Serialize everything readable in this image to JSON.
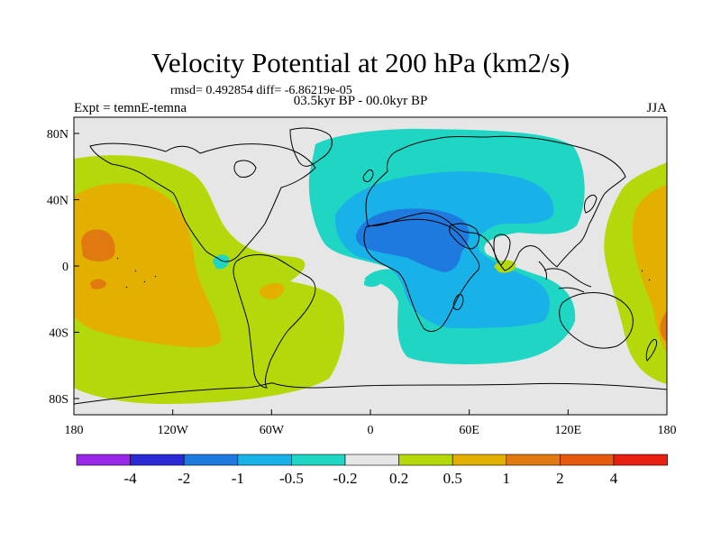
{
  "title": "Velocity Potential at 200 hPa (km2/s)",
  "stats": "rmsd= 0.492854 diff= -6.86219e-05",
  "left_label": "Expt = temnE-temna",
  "center_label": "03.5kyr BP - 00.0kyr BP",
  "right_label": "JJA",
  "colors": {
    "land_bg": "#e6e6e6",
    "lvl_m4": "#1a3ad6",
    "lvl_m2": "#1f7ae0",
    "lvl_m1": "#19b2e8",
    "lvl_m05": "#1fd6c4",
    "lvl_neutral": "#e6e6e6",
    "lvl_p02": "#b4d90a",
    "lvl_p05": "#e3b000",
    "lvl_p1": "#e07a10",
    "coast": "#000000"
  },
  "map": {
    "x_ticks": [
      "180",
      "120W",
      "60W",
      "0",
      "60E",
      "120E",
      "180"
    ],
    "y_ticks": [
      "80N",
      "40N",
      "0",
      "40S",
      "80S"
    ]
  },
  "colorbar": {
    "colors": [
      "#9a28e8",
      "#2a2ad6",
      "#1f7ae0",
      "#19b2e8",
      "#1fd6c4",
      "#e6e6e6",
      "#b4d90a",
      "#e3b000",
      "#e07a10",
      "#e65a10",
      "#e82010"
    ],
    "labels": [
      "-4",
      "-2",
      "-1",
      "-0.5",
      "-0.2",
      "0.2",
      "0.5",
      "1",
      "2",
      "4"
    ]
  }
}
